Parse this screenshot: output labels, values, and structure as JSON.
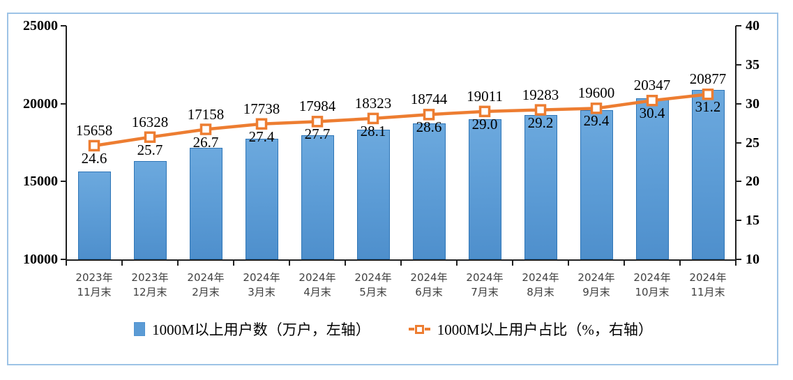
{
  "chart_data": {
    "type": "bar",
    "subtype": "combo-bar-line",
    "categories": [
      [
        "2023年",
        "11月末"
      ],
      [
        "2023年",
        "12月末"
      ],
      [
        "2024年",
        "2月末"
      ],
      [
        "2024年",
        "3月末"
      ],
      [
        "2024年",
        "4月末"
      ],
      [
        "2024年",
        "5月末"
      ],
      [
        "2024年",
        "6月末"
      ],
      [
        "2024年",
        "7月末"
      ],
      [
        "2024年",
        "8月末"
      ],
      [
        "2024年",
        "9月末"
      ],
      [
        "2024年",
        "10月末"
      ],
      [
        "2024年",
        "11月末"
      ]
    ],
    "series": [
      {
        "name": "1000M以上用户数（万户，左轴）",
        "type": "bar",
        "axis": "left",
        "values": [
          15658,
          16328,
          17158,
          17738,
          17984,
          18323,
          18744,
          19011,
          19283,
          19600,
          20347,
          20877
        ],
        "labels": [
          "15658",
          "16328",
          "17158",
          "17738",
          "17984",
          "18323",
          "18744",
          "19011",
          "19283",
          "19600",
          "20347",
          "20877"
        ],
        "color": "#5B9BD5",
        "border_color": "#2E75B6"
      },
      {
        "name": "1000M以上用户占比（%，右轴）",
        "type": "line",
        "axis": "right",
        "values": [
          24.6,
          25.7,
          26.7,
          27.4,
          27.7,
          28.1,
          28.6,
          29.0,
          29.2,
          29.4,
          30.4,
          31.2
        ],
        "labels": [
          "24.6",
          "25.7",
          "26.7",
          "27.4",
          "27.7",
          "28.1",
          "28.6",
          "29.0",
          "29.2",
          "29.4",
          "30.4",
          "31.2"
        ],
        "color": "#ED7D31",
        "marker": "square-white-fill"
      }
    ],
    "left_axis": {
      "min": 10000,
      "max": 25000,
      "ticks": [
        25000,
        20000,
        15000,
        10000
      ]
    },
    "right_axis": {
      "min": 10,
      "max": 40,
      "ticks": [
        40,
        35,
        30,
        25,
        20,
        15,
        10
      ]
    },
    "grid": false,
    "legend_position": "bottom",
    "title": "",
    "xlabel": "",
    "ylabel": ""
  },
  "legend": {
    "bar_label": "1000M以上用户数（万户，左轴）",
    "line_label": "1000M以上用户占比（%，右轴）"
  },
  "colors": {
    "bar_fill": "#5B9BD5",
    "bar_border": "#2E75B6",
    "line": "#ED7D31",
    "axis": "#1f1f1f",
    "frame_border": "#9DC3E6",
    "x_label_text": "#404040",
    "label_text": "#000000"
  }
}
